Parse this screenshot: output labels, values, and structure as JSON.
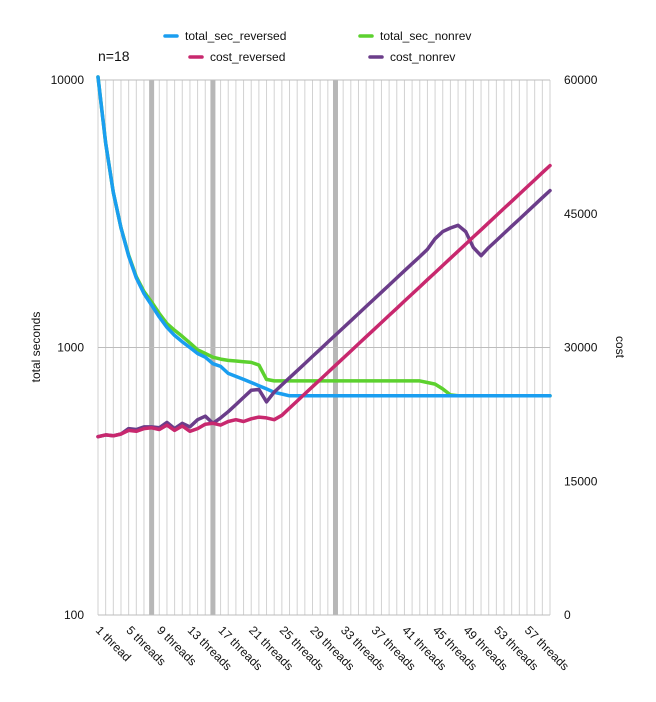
{
  "chart_data": {
    "type": "line",
    "annotation": "n=18",
    "xlabel": "",
    "ylabel_left": "total seconds",
    "ylabel_right": "cost",
    "y_left_scale": "log",
    "y_left_lim": [
      100,
      10000
    ],
    "y_left_ticks": [
      "10000",
      "1000",
      "100"
    ],
    "y_right_lim": [
      0,
      60000
    ],
    "y_right_ticks": [
      "60000",
      "45000",
      "30000",
      "15000",
      "0"
    ],
    "x_tick_labels": [
      "1 thread",
      "5 threads",
      "9 threads",
      "13 threads",
      "17 threads",
      "21 threads",
      "25 threads",
      "29 threads",
      "33 threads",
      "37 threads",
      "41 threads",
      "45 threads",
      "49 threads",
      "53 threads",
      "57 threads"
    ],
    "x": [
      1,
      2,
      3,
      4,
      5,
      6,
      7,
      8,
      9,
      10,
      11,
      12,
      13,
      14,
      15,
      16,
      17,
      18,
      19,
      20,
      21,
      22,
      23,
      24,
      25,
      26,
      27,
      28,
      29,
      30,
      31,
      32,
      33,
      34,
      35,
      36,
      37,
      38,
      39,
      40,
      41,
      42,
      43,
      44,
      45,
      46,
      47,
      48,
      49,
      50,
      51,
      52,
      53,
      54,
      55,
      56,
      57,
      58,
      59,
      60
    ],
    "highlight_x": [
      8,
      16,
      32
    ],
    "grid": "vertical lines at each thread, horizontal line at 1000",
    "legend_position": "top",
    "series": [
      {
        "name": "total_sec_reversed",
        "axis": "left",
        "color": "#1a9ef0",
        "values": [
          10600,
          5800,
          3800,
          2800,
          2200,
          1820,
          1590,
          1440,
          1300,
          1190,
          1110,
          1050,
          1000,
          950,
          920,
          870,
          850,
          800,
          780,
          760,
          740,
          720,
          700,
          680,
          670,
          660,
          660,
          660,
          660,
          660,
          660,
          660,
          660,
          660,
          660,
          660,
          660,
          660,
          660,
          660,
          660,
          660,
          660,
          660,
          660,
          660,
          660,
          660,
          660,
          660,
          660,
          660,
          660,
          660,
          660,
          660,
          660,
          660,
          660,
          660
        ]
      },
      {
        "name": "total_sec_nonrev",
        "axis": "left",
        "color": "#5cd12e",
        "values": [
          10600,
          5800,
          3800,
          2800,
          2220,
          1840,
          1620,
          1480,
          1340,
          1230,
          1160,
          1100,
          1040,
          980,
          950,
          920,
          905,
          895,
          890,
          885,
          880,
          860,
          760,
          750,
          750,
          750,
          750,
          750,
          750,
          750,
          750,
          750,
          750,
          750,
          750,
          750,
          750,
          750,
          750,
          750,
          750,
          750,
          750,
          740,
          730,
          700,
          665,
          660,
          660,
          660,
          660,
          660,
          660,
          660,
          660,
          660,
          660,
          660,
          660,
          660
        ]
      },
      {
        "name": "cost_reversed",
        "axis": "right",
        "color": "#c8286e",
        "values": [
          20000,
          20200,
          20100,
          20300,
          20700,
          20600,
          20900,
          21000,
          20800,
          21300,
          20700,
          21200,
          20600,
          20900,
          21400,
          21500,
          21300,
          21700,
          21900,
          21700,
          22000,
          22200,
          22100,
          21900,
          22400,
          23200,
          24000,
          24800,
          25600,
          26400,
          27200,
          28000,
          28800,
          29600,
          30400,
          31200,
          32000,
          32800,
          33600,
          34400,
          35200,
          36000,
          36800,
          37600,
          38400,
          39200,
          40000,
          40800,
          41600,
          42400,
          43200,
          44000,
          44800,
          45600,
          46400,
          47200,
          48000,
          48800,
          49600,
          50400
        ]
      },
      {
        "name": "cost_nonrev",
        "axis": "right",
        "color": "#6b3d8a",
        "values": [
          20000,
          20200,
          20100,
          20300,
          20900,
          20800,
          21100,
          21100,
          21000,
          21600,
          20900,
          21500,
          21100,
          21900,
          22300,
          21500,
          22100,
          22800,
          23600,
          24400,
          25200,
          25300,
          23900,
          25000,
          25800,
          26600,
          27400,
          28200,
          29000,
          29800,
          30600,
          31400,
          32200,
          33000,
          33800,
          34600,
          35400,
          36200,
          37000,
          37800,
          38600,
          39400,
          40200,
          41000,
          42200,
          43000,
          43400,
          43700,
          43000,
          41200,
          40300,
          41200,
          42000,
          42800,
          43600,
          44400,
          45200,
          46000,
          46800,
          47600
        ]
      }
    ]
  }
}
